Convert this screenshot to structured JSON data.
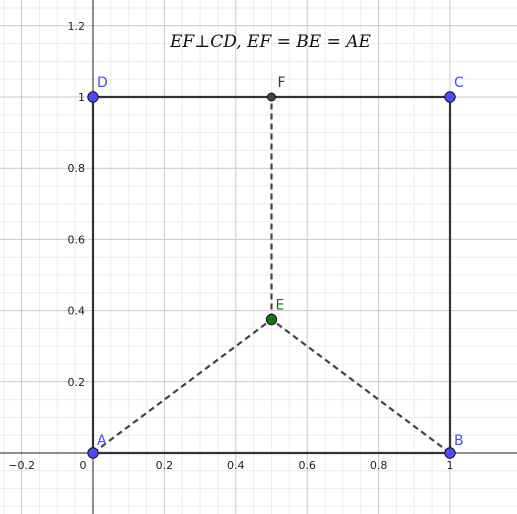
{
  "title": "EF⊥CD, EF = BE = AE",
  "axes": {
    "x_ticks": [
      "−0.2",
      "0",
      "0.2",
      "0.4",
      "0.6",
      "0.8",
      "1"
    ],
    "y_ticks": [
      "0.2",
      "0.4",
      "0.6",
      "0.8",
      "1",
      "1.2"
    ]
  },
  "points": [
    {
      "name": "A",
      "x": 0,
      "y": 0,
      "color": "#4a4aff"
    },
    {
      "name": "B",
      "x": 1,
      "y": 0,
      "color": "#4a4aff"
    },
    {
      "name": "C",
      "x": 1,
      "y": 1,
      "color": "#4a4aff"
    },
    {
      "name": "D",
      "x": 0,
      "y": 1,
      "color": "#4a4aff"
    },
    {
      "name": "E",
      "x": 0.5,
      "y": 0.375,
      "color": "#0a7a0a"
    },
    {
      "name": "F",
      "x": 0.5,
      "y": 1,
      "color": "#444444"
    }
  ],
  "segments_solid": [
    [
      "A",
      "B"
    ],
    [
      "B",
      "C"
    ],
    [
      "C",
      "D"
    ],
    [
      "D",
      "A"
    ]
  ],
  "segments_dashed": [
    [
      "A",
      "E"
    ],
    [
      "B",
      "E"
    ],
    [
      "E",
      "F"
    ]
  ]
}
